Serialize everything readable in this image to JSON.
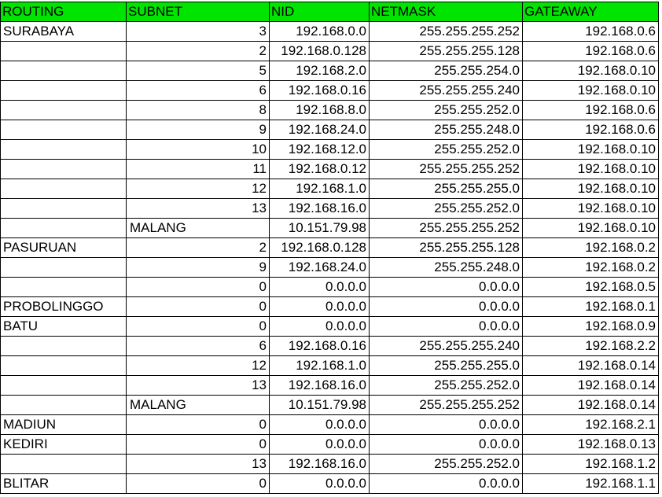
{
  "headers": [
    "ROUTING",
    "SUBNET",
    "NID",
    "NETMASK",
    "GATEAWAY"
  ],
  "rows": [
    {
      "routing": "SURABAYA",
      "subnet": "3",
      "nid": "192.168.0.0",
      "netmask": "255.255.255.252",
      "gateway": "192.168.0.6"
    },
    {
      "routing": "",
      "subnet": "2",
      "nid": "192.168.0.128",
      "netmask": "255.255.255.128",
      "gateway": "192.168.0.6"
    },
    {
      "routing": "",
      "subnet": "5",
      "nid": "192.168.2.0",
      "netmask": "255.255.254.0",
      "gateway": "192.168.0.10"
    },
    {
      "routing": "",
      "subnet": "6",
      "nid": "192.168.0.16",
      "netmask": "255.255.255.240",
      "gateway": "192.168.0.10"
    },
    {
      "routing": "",
      "subnet": "8",
      "nid": "192.168.8.0",
      "netmask": "255.255.252.0",
      "gateway": "192.168.0.6"
    },
    {
      "routing": "",
      "subnet": "9",
      "nid": "192.168.24.0",
      "netmask": "255.255.248.0",
      "gateway": "192.168.0.6"
    },
    {
      "routing": "",
      "subnet": "10",
      "nid": "192.168.12.0",
      "netmask": "255.255.252.0",
      "gateway": "192.168.0.10"
    },
    {
      "routing": "",
      "subnet": "11",
      "nid": "192.168.0.12",
      "netmask": "255.255.255.252",
      "gateway": "192.168.0.10"
    },
    {
      "routing": "",
      "subnet": "12",
      "nid": "192.168.1.0",
      "netmask": "255.255.255.0",
      "gateway": "192.168.0.10"
    },
    {
      "routing": "",
      "subnet": "13",
      "nid": "192.168.16.0",
      "netmask": "255.255.252.0",
      "gateway": "192.168.0.10"
    },
    {
      "routing": "",
      "subnet": "MALANG",
      "nid": "10.151.79.98",
      "netmask": "255.255.255.252",
      "gateway": "192.168.0.10"
    },
    {
      "routing": "PASURUAN",
      "subnet": "2",
      "nid": "192.168.0.128",
      "netmask": "255.255.255.128",
      "gateway": "192.168.0.2"
    },
    {
      "routing": "",
      "subnet": "9",
      "nid": "192.168.24.0",
      "netmask": "255.255.248.0",
      "gateway": "192.168.0.2"
    },
    {
      "routing": "",
      "subnet": "0",
      "nid": "0.0.0.0",
      "netmask": "0.0.0.0",
      "gateway": "192.168.0.5"
    },
    {
      "routing": "PROBOLINGGO",
      "subnet": "0",
      "nid": "0.0.0.0",
      "netmask": "0.0.0.0",
      "gateway": "192.168.0.1"
    },
    {
      "routing": "BATU",
      "subnet": "0",
      "nid": "0.0.0.0",
      "netmask": "0.0.0.0",
      "gateway": "192.168.0.9"
    },
    {
      "routing": "",
      "subnet": "6",
      "nid": "192.168.0.16",
      "netmask": "255.255.255.240",
      "gateway": "192.168.2.2"
    },
    {
      "routing": "",
      "subnet": "12",
      "nid": "192.168.1.0",
      "netmask": "255.255.255.0",
      "gateway": "192.168.0.14"
    },
    {
      "routing": "",
      "subnet": "13",
      "nid": "192.168.16.0",
      "netmask": "255.255.252.0",
      "gateway": "192.168.0.14"
    },
    {
      "routing": "",
      "subnet": "MALANG",
      "nid": "10.151.79.98",
      "netmask": "255.255.255.252",
      "gateway": "192.168.0.14"
    },
    {
      "routing": "MADIUN",
      "subnet": "0",
      "nid": "0.0.0.0",
      "netmask": "0.0.0.0",
      "gateway": "192.168.2.1"
    },
    {
      "routing": "KEDIRI",
      "subnet": "0",
      "nid": "0.0.0.0",
      "netmask": "0.0.0.0",
      "gateway": "192.168.0.13"
    },
    {
      "routing": "",
      "subnet": "13",
      "nid": "192.168.16.0",
      "netmask": "255.255.252.0",
      "gateway": "192.168.1.2"
    },
    {
      "routing": "BLITAR",
      "subnet": "0",
      "nid": "0.0.0.0",
      "netmask": "0.0.0.0",
      "gateway": "192.168.1.1"
    }
  ],
  "colors": {
    "header_bg": "#00e400",
    "border": "#000000"
  }
}
